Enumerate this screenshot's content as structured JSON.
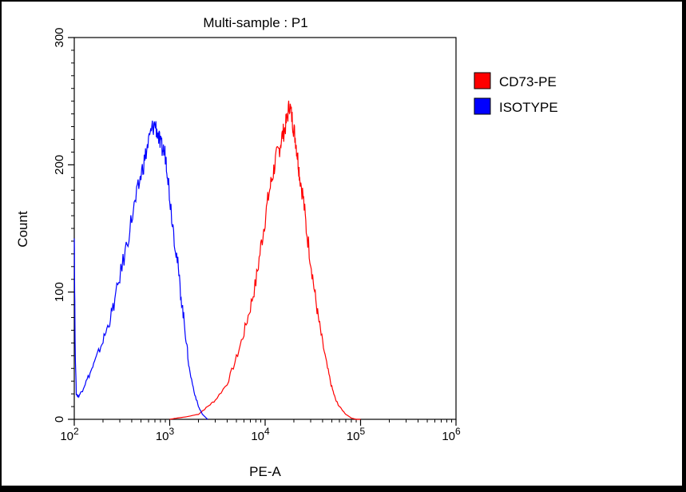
{
  "chart_data": {
    "type": "area",
    "title": "Multi-sample : P1",
    "xlabel": "PE-A",
    "ylabel": "Count",
    "xscale": "log",
    "xlim": [
      100,
      1000000
    ],
    "ylim": [
      0,
      300
    ],
    "x_ticks": [
      {
        "base": "10",
        "exp": "2",
        "value": 100
      },
      {
        "base": "10",
        "exp": "3",
        "value": 1000
      },
      {
        "base": "10",
        "exp": "4",
        "value": 10000
      },
      {
        "base": "10",
        "exp": "5",
        "value": 100000
      },
      {
        "base": "10",
        "exp": "6",
        "value": 1000000
      }
    ],
    "y_ticks": [
      "0",
      "100",
      "200",
      "300"
    ],
    "legend_position": "right",
    "grid": false,
    "series": [
      {
        "name": "CD73-PE",
        "color": "#ff0000",
        "x": [
          1000,
          1200,
          1500,
          2000,
          2500,
          3000,
          4000,
          5000,
          6000,
          7000,
          8000,
          9000,
          10000,
          11000,
          12000,
          13000,
          14000,
          15000,
          16000,
          17000,
          18000,
          19000,
          20000,
          21000,
          22000,
          23000,
          25000,
          27000,
          30000,
          33000,
          36000,
          40000,
          45000,
          50000,
          55000,
          60000,
          70000,
          80000,
          90000,
          100000
        ],
        "y": [
          0,
          1,
          2,
          4,
          10,
          15,
          28,
          48,
          68,
          88,
          108,
          135,
          158,
          178,
          192,
          205,
          212,
          222,
          228,
          236,
          248,
          238,
          228,
          218,
          205,
          192,
          175,
          150,
          125,
          100,
          80,
          60,
          40,
          25,
          15,
          10,
          4,
          1,
          0,
          0
        ]
      },
      {
        "name": "ISOTYPE",
        "color": "#0000ff",
        "x": [
          100,
          102,
          105,
          110,
          120,
          130,
          150,
          170,
          200,
          230,
          260,
          300,
          350,
          400,
          450,
          500,
          550,
          600,
          650,
          700,
          750,
          800,
          850,
          900,
          950,
          1000,
          1100,
          1200,
          1300,
          1400,
          1500,
          1600,
          1800,
          2000,
          2200,
          2500
        ],
        "y": [
          150,
          60,
          20,
          18,
          22,
          28,
          38,
          48,
          62,
          75,
          90,
          112,
          135,
          158,
          175,
          192,
          205,
          218,
          228,
          232,
          225,
          215,
          212,
          208,
          195,
          175,
          148,
          125,
          100,
          80,
          60,
          40,
          22,
          10,
          4,
          0
        ]
      }
    ]
  }
}
